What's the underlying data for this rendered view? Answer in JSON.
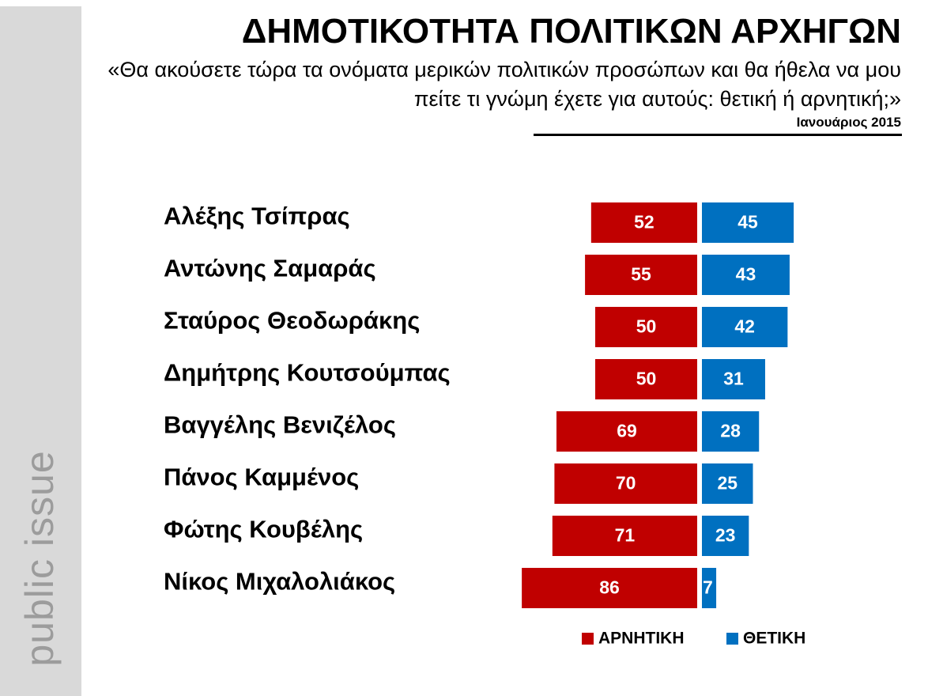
{
  "brand": {
    "name": "public issue"
  },
  "header": {
    "title": "ΔΗΜΟΤΙΚΟΤΗΤΑ ΠΟΛΙΤΙΚΩΝ ΑΡΧΗΓΩΝ",
    "subtitle": "«Θα ακούσετε τώρα τα ονόματα μερικών πολιτικών προσώπων και θα ήθελα να μου πείτε τι γνώμη έχετε για αυτούς: θετική ή αρνητική;»",
    "date": "Ιανουάριος 2015"
  },
  "chart_data": {
    "type": "bar",
    "orientation": "horizontal-diverging",
    "categories": [
      "Αλέξης Τσίπρας",
      "Αντώνης Σαμαράς",
      "Σταύρος Θεοδωράκης",
      "Δημήτρης Κουτσούμπας",
      "Βαγγέλης Βενιζέλος",
      "Πάνος Καμμένος",
      "Φώτης Κουβέλης",
      "Νίκος Μιχαλολιάκος"
    ],
    "series": [
      {
        "name": "ΑΡΝΗΤΙΚΗ",
        "color": "#c00000",
        "values": [
          52,
          55,
          50,
          50,
          69,
          70,
          71,
          86
        ]
      },
      {
        "name": "ΘΕΤΙΚΗ",
        "color": "#0070c0",
        "values": [
          45,
          43,
          42,
          31,
          28,
          25,
          23,
          7
        ]
      }
    ],
    "legend_position": "bottom-right",
    "grid": false
  }
}
